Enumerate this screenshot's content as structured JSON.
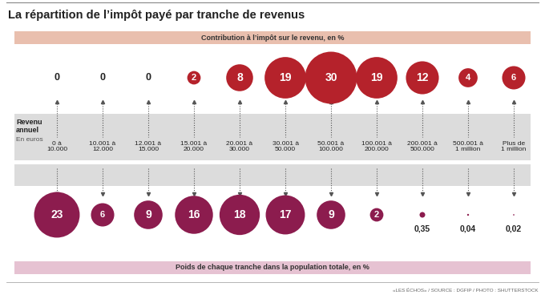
{
  "chart_data": {
    "type": "bubble",
    "title": "La répartition de l’impôt payé par tranche de revenus",
    "categories": [
      "0 à 10.000",
      "10.001 à 12.000",
      "12.001 à 15.000",
      "15.001 à 20.000",
      "20.001 à 30.000",
      "30.001 à 50.000",
      "50.001 à 100.000",
      "100.001 à 200.000",
      "200.001 à 500.000",
      "500.001 à 1 million",
      "Plus de 1 million"
    ],
    "series": [
      {
        "name": "Contribution à l’impôt sur le revenu, en %",
        "color": "#b5222b",
        "values": [
          0,
          0,
          0,
          2,
          8,
          19,
          30,
          19,
          12,
          4,
          6
        ]
      },
      {
        "name": "Poids de chaque tranche dans la population totale, en %",
        "color": "#8c1c4e",
        "values": [
          23,
          6,
          9,
          16,
          18,
          17,
          9,
          2,
          0.35,
          0.04,
          0.02
        ],
        "value_labels": [
          "23",
          "6",
          "9",
          "16",
          "18",
          "17",
          "9",
          "2",
          "0,35",
          "0,04",
          "0,02"
        ]
      }
    ],
    "data_labels": true,
    "annotations": {
      "axis_title": "Revenu annuel",
      "axis_subtitle": "En euros",
      "source": "«LES ÉCHOS» / SOURCE : DGFIP / PHOTO : SHUTTERSTOCK"
    }
  }
}
